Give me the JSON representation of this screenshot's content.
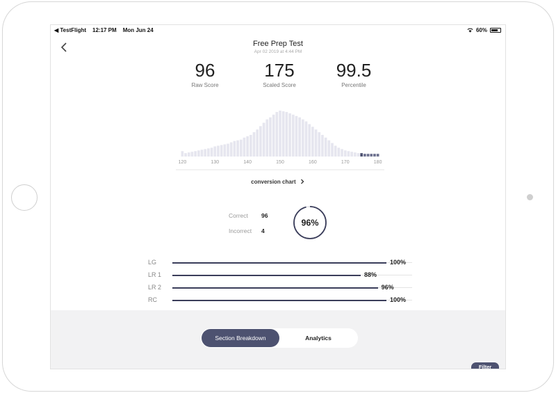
{
  "status_bar": {
    "app": "◀ TestFlight",
    "time": "12:17 PM",
    "date": "Mon Jun 24",
    "battery": "60%"
  },
  "header": {
    "title": "Free Prep Test",
    "subtitle": "Apr 02 2019 at 4:44 PM"
  },
  "scores": [
    {
      "value": "96",
      "label": "Raw Score"
    },
    {
      "value": "175",
      "label": "Scaled Score"
    },
    {
      "value": "99.5",
      "label": "Percentile"
    }
  ],
  "chart_data": {
    "type": "bar",
    "x": [
      120,
      121,
      122,
      123,
      124,
      125,
      126,
      127,
      128,
      129,
      130,
      131,
      132,
      133,
      134,
      135,
      136,
      137,
      138,
      139,
      140,
      141,
      142,
      143,
      144,
      145,
      146,
      147,
      148,
      149,
      150,
      151,
      152,
      153,
      154,
      155,
      156,
      157,
      158,
      159,
      160,
      161,
      162,
      163,
      164,
      165,
      166,
      167,
      168,
      169,
      170,
      171,
      172,
      173,
      174,
      175,
      176,
      177,
      178,
      179,
      180
    ],
    "values": [
      8,
      5,
      6,
      7,
      8,
      9,
      10,
      11,
      12,
      13,
      15,
      16,
      17,
      18,
      19,
      21,
      23,
      24,
      25,
      28,
      30,
      32,
      36,
      40,
      45,
      50,
      55,
      58,
      62,
      66,
      68,
      67,
      66,
      64,
      62,
      60,
      58,
      55,
      52,
      48,
      44,
      40,
      36,
      32,
      28,
      24,
      20,
      16,
      13,
      11,
      9,
      8,
      7,
      6,
      5,
      5,
      4,
      4,
      4,
      4,
      4
    ],
    "highlight_from": 175,
    "tick_labels": [
      "120",
      "130",
      "140",
      "150",
      "160",
      "170",
      "180"
    ],
    "xlim": [
      118,
      182
    ],
    "colors": {
      "bar": "#e6e6ef",
      "highlight": "#6e7290",
      "highlight_dark": "#4d5270"
    }
  },
  "conversion_link": "conversion chart",
  "results": {
    "correct_label": "Correct",
    "correct_value": "96",
    "incorrect_label": "Incorrect",
    "incorrect_value": "4",
    "percent_text": "96%",
    "percent": 96
  },
  "sections": [
    {
      "name": "LG",
      "pct_text": "100%",
      "pct": 100
    },
    {
      "name": "LR 1",
      "pct_text": "88%",
      "pct": 88
    },
    {
      "name": "LR 2",
      "pct_text": "96%",
      "pct": 96
    },
    {
      "name": "RC",
      "pct_text": "100%",
      "pct": 100
    }
  ],
  "tabs": {
    "active": "Section Breakdown",
    "inactive": "Analytics"
  },
  "filter_label": "Filter",
  "colors": {
    "accent": "#4d5270",
    "bar_fill": "#3a3d5a"
  }
}
